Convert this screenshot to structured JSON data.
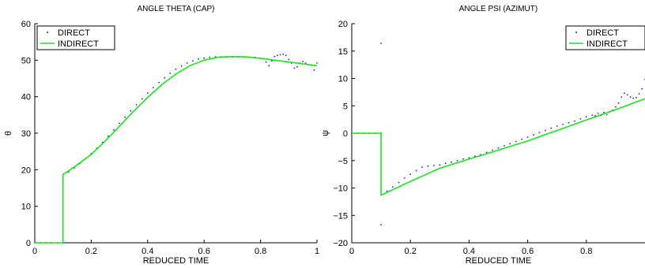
{
  "chart_data": [
    {
      "type": "line",
      "title": "ANGLE THETA (CAP)",
      "xlabel": "REDUCED TIME",
      "ylabel": "θ",
      "xlim": [
        0,
        1
      ],
      "ylim": [
        0,
        60
      ],
      "xticks": [
        0,
        0.2,
        0.4,
        0.6,
        0.8,
        1
      ],
      "xtick_labels": [
        "0",
        "0.2",
        "0.4",
        "0.6",
        "0.8",
        "1"
      ],
      "yticks": [
        0,
        10,
        20,
        30,
        40,
        50,
        60
      ],
      "ytick_labels": [
        "0",
        "10",
        "20",
        "30",
        "40",
        "50",
        "60"
      ],
      "grid": false,
      "legend_position": "top-left",
      "series": [
        {
          "name": "DIRECT",
          "style": "points",
          "color": "#1f1fd6",
          "x": [
            0,
            0.02,
            0.04,
            0.06,
            0.08,
            0.1,
            0.1,
            0.12,
            0.14,
            0.16,
            0.18,
            0.2,
            0.22,
            0.24,
            0.26,
            0.28,
            0.3,
            0.32,
            0.34,
            0.36,
            0.38,
            0.4,
            0.42,
            0.44,
            0.46,
            0.48,
            0.5,
            0.52,
            0.54,
            0.56,
            0.58,
            0.6,
            0.62,
            0.64,
            0.66,
            0.68,
            0.7,
            0.72,
            0.74,
            0.76,
            0.78,
            0.8,
            0.81,
            0.82,
            0.83,
            0.84,
            0.85,
            0.86,
            0.87,
            0.88,
            0.89,
            0.9,
            0.91,
            0.92,
            0.93,
            0.94,
            0.95,
            0.96,
            0.97,
            0.98,
            0.99,
            1.0
          ],
          "y": [
            0,
            0,
            0,
            0,
            0,
            0,
            16.8,
            19.4,
            20.5,
            21.7,
            23.0,
            24.4,
            25.9,
            27.5,
            29.2,
            30.9,
            32.7,
            34.4,
            36.1,
            37.8,
            39.4,
            41.0,
            42.5,
            43.9,
            45.2,
            46.4,
            47.5,
            48.4,
            49.2,
            49.8,
            50.3,
            50.6,
            50.8,
            50.9,
            50.9,
            50.9,
            50.9,
            50.9,
            50.9,
            50.8,
            50.8,
            50.6,
            50.4,
            49.5,
            48.5,
            49.8,
            51.0,
            51.3,
            51.5,
            51.6,
            51.3,
            50.2,
            49.2,
            47.8,
            48.2,
            49.2,
            49.6,
            49.2,
            48.8,
            48.6,
            47.3,
            49.2
          ]
        },
        {
          "name": "INDIRECT",
          "style": "line",
          "color": "#19e619",
          "x": [
            0,
            0.1,
            0.1,
            0.12,
            0.15,
            0.2,
            0.25,
            0.3,
            0.35,
            0.4,
            0.45,
            0.5,
            0.55,
            0.6,
            0.65,
            0.7,
            0.75,
            0.8,
            0.85,
            0.9,
            0.95,
            1.0
          ],
          "y": [
            0,
            0,
            18.7,
            19.7,
            21.3,
            24.2,
            27.9,
            31.9,
            36.0,
            39.8,
            43.3,
            46.2,
            48.5,
            50.0,
            50.8,
            51.0,
            50.9,
            50.5,
            50.0,
            49.5,
            49.0,
            48.5
          ]
        }
      ]
    },
    {
      "type": "line",
      "title": "ANGLE PSI (AZIMUT)",
      "xlabel": "REDUCED TIME",
      "ylabel": "ψ",
      "xlim": [
        0,
        1
      ],
      "ylim": [
        -20,
        20
      ],
      "xticks": [
        0,
        0.2,
        0.4,
        0.6,
        0.8
      ],
      "xtick_labels": [
        "0",
        "0.2",
        "0.4",
        "0.6",
        "0.8"
      ],
      "yticks": [
        -20,
        -15,
        -10,
        -5,
        0,
        5,
        10,
        15,
        20
      ],
      "ytick_labels": [
        "−20",
        "−15",
        "−10",
        "−5",
        "0",
        "5",
        "10",
        "15",
        "20"
      ],
      "grid": false,
      "legend_position": "top-right",
      "series": [
        {
          "name": "DIRECT",
          "style": "points",
          "color": "#1f1fd6",
          "x": [
            0,
            0.02,
            0.04,
            0.06,
            0.08,
            0.1,
            0.1,
            0.1,
            0.12,
            0.14,
            0.16,
            0.18,
            0.2,
            0.22,
            0.24,
            0.26,
            0.28,
            0.3,
            0.32,
            0.34,
            0.36,
            0.38,
            0.4,
            0.42,
            0.44,
            0.46,
            0.48,
            0.5,
            0.52,
            0.54,
            0.56,
            0.58,
            0.6,
            0.62,
            0.64,
            0.66,
            0.68,
            0.7,
            0.72,
            0.74,
            0.76,
            0.78,
            0.8,
            0.82,
            0.83,
            0.84,
            0.85,
            0.86,
            0.87,
            0.88,
            0.89,
            0.9,
            0.91,
            0.92,
            0.93,
            0.94,
            0.95,
            0.96,
            0.97,
            0.98,
            0.99,
            1.0
          ],
          "y": [
            0,
            0,
            0,
            0,
            0,
            0,
            16.4,
            -16.7,
            -10.6,
            -9.8,
            -9.0,
            -8.2,
            -7.5,
            -6.8,
            -6.2,
            -6.0,
            -5.9,
            -5.8,
            -5.5,
            -5.3,
            -5.0,
            -4.7,
            -4.5,
            -4.2,
            -3.9,
            -3.5,
            -3.1,
            -2.7,
            -2.3,
            -1.9,
            -1.5,
            -1.1,
            -0.7,
            -0.3,
            0.1,
            0.5,
            0.9,
            1.3,
            1.6,
            1.9,
            2.2,
            2.6,
            3.0,
            3.3,
            3.2,
            3.6,
            3.3,
            3.8,
            3.4,
            3.9,
            4.2,
            4.8,
            5.5,
            6.6,
            7.3,
            7.0,
            6.6,
            6.4,
            6.5,
            7.2,
            8.1,
            9.8
          ]
        },
        {
          "name": "INDIRECT",
          "style": "line",
          "color": "#19e619",
          "x": [
            0,
            0.1,
            0.1,
            0.2,
            0.3,
            0.4,
            0.5,
            0.6,
            0.7,
            0.8,
            0.9,
            1.0
          ],
          "y": [
            0,
            0,
            -11.3,
            -8.8,
            -6.4,
            -4.7,
            -3.1,
            -1.4,
            0.5,
            2.4,
            4.3,
            6.3
          ]
        }
      ]
    }
  ]
}
